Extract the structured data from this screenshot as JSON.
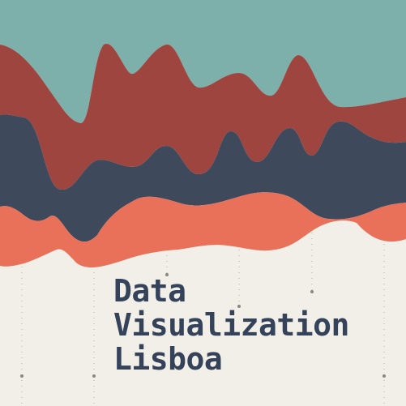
{
  "colors": {
    "background": "#f2efe9",
    "teal": "#7eb0ab",
    "red": "#9e4540",
    "navy": "#3e4a5c",
    "coral": "#ea7159",
    "guides": "#b9b6b0",
    "title": "#34425a"
  },
  "title": {
    "line1": "Data",
    "line2": "Visualization",
    "line3": "Lisboa"
  },
  "layers": [
    {
      "name": "teal-stream",
      "color_key": "teal"
    },
    {
      "name": "red-stream",
      "color_key": "red"
    },
    {
      "name": "navy-stream",
      "color_key": "navy"
    },
    {
      "name": "coral-stream",
      "color_key": "coral"
    }
  ]
}
